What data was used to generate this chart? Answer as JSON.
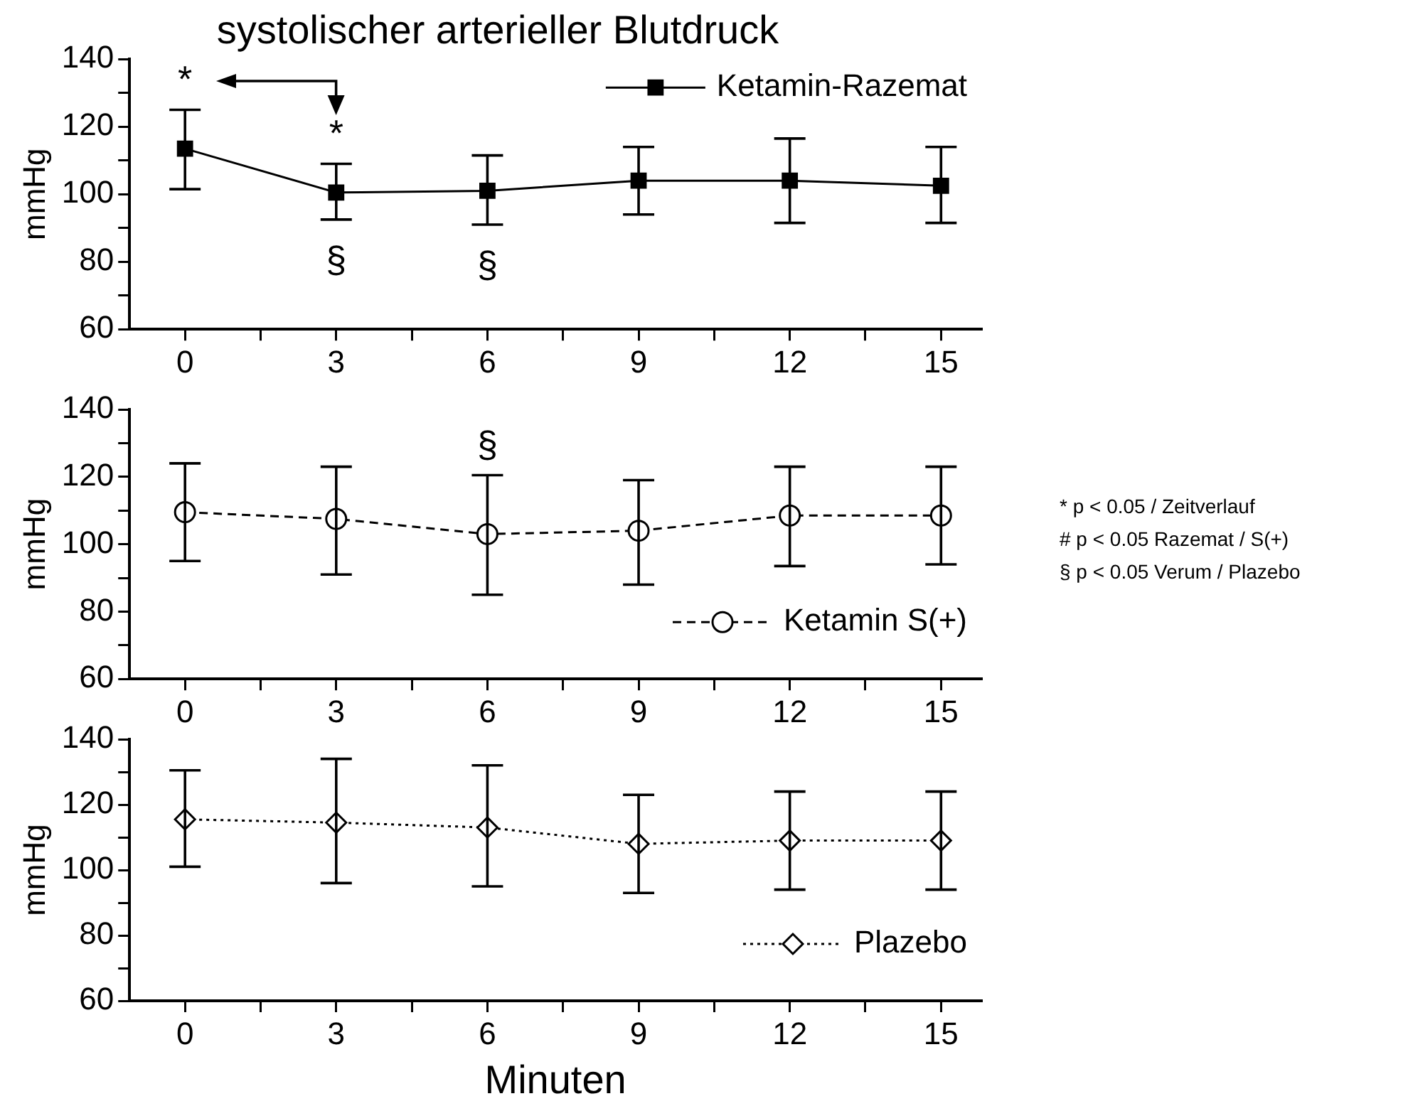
{
  "chart_data": [
    {
      "type": "line",
      "title": "systolischer arterieller Blutdruck",
      "ylabel": "mmHg",
      "x": [
        0,
        3,
        6,
        9,
        12,
        15
      ],
      "xlim": [
        -1.1,
        15.8
      ],
      "ylim": [
        60,
        140
      ],
      "xticks": [
        0,
        {
          "value": 1.5,
          "label": null
        },
        3,
        {
          "value": 4.5,
          "label": null
        },
        6,
        {
          "value": 7.5,
          "label": null
        },
        9,
        {
          "value": 10.5,
          "label": null
        },
        12,
        {
          "value": 13.5,
          "label": null
        },
        15
      ],
      "yticks": [
        60,
        {
          "value": 70,
          "label": null
        },
        80,
        {
          "value": 90,
          "label": null
        },
        100,
        {
          "value": 110,
          "label": null
        },
        120,
        {
          "value": 130,
          "label": null
        },
        140
      ],
      "marker": "square",
      "line_style": "solid",
      "legend": "top right",
      "grid": false,
      "series": [
        {
          "name": "Ketamin-Razemat",
          "color": "#000000",
          "values": [
            113.5,
            100.5,
            101,
            104,
            104,
            102.5
          ],
          "errors": [
            [
              101.5,
              125
            ],
            [
              92.5,
              109
            ],
            [
              91,
              111.5
            ],
            [
              94,
              114
            ],
            [
              91.5,
              116.5
            ],
            [
              91.5,
              114
            ]
          ]
        }
      ],
      "annotations": [
        {
          "text": "*",
          "x": 0,
          "y": 125
        },
        {
          "text": "*",
          "x": 3,
          "y": 109
        },
        {
          "text": "§",
          "x": 3,
          "y": 92.5
        },
        {
          "text": "§",
          "x": 6,
          "y": 91
        }
      ]
    },
    {
      "type": "line",
      "ylabel": "mmHg",
      "x": [
        0,
        3,
        6,
        9,
        12,
        15
      ],
      "xlim": [
        -1.1,
        15.8
      ],
      "ylim": [
        60,
        140
      ],
      "xticks": [
        0,
        {
          "value": 1.5,
          "label": null
        },
        3,
        {
          "value": 4.5,
          "label": null
        },
        6,
        {
          "value": 7.5,
          "label": null
        },
        9,
        {
          "value": 10.5,
          "label": null
        },
        12,
        {
          "value": 13.5,
          "label": null
        },
        15
      ],
      "yticks": [
        60,
        {
          "value": 70,
          "label": null
        },
        80,
        {
          "value": 90,
          "label": null
        },
        100,
        {
          "value": 110,
          "label": null
        },
        120,
        {
          "value": 130,
          "label": null
        },
        140
      ],
      "marker": "circle",
      "line_style": "dashed",
      "legend": "bottom right",
      "grid": false,
      "series": [
        {
          "name": "Ketamin S(+)",
          "color": "#000000",
          "values": [
            109.5,
            107.5,
            103,
            104,
            108.5,
            108.5
          ],
          "errors": [
            [
              95,
              124
            ],
            [
              91,
              123
            ],
            [
              85,
              120.5
            ],
            [
              88,
              119
            ],
            [
              93.5,
              123
            ],
            [
              94,
              123
            ]
          ]
        }
      ],
      "annotations": [
        {
          "text": "§",
          "x": 6,
          "y": 120.5
        },
        "* p < 0.05 / Zeitverlauf",
        "# p < 0.05 Razemat / S(+)",
        "§ p < 0.05 Verum / Plazebo"
      ]
    },
    {
      "type": "line",
      "ylabel": "mmHg",
      "xlabel": "Minuten",
      "x": [
        0,
        3,
        6,
        9,
        12,
        15
      ],
      "xlim": [
        -1.1,
        15.8
      ],
      "ylim": [
        60,
        140
      ],
      "xticks": [
        0,
        {
          "value": 1.5,
          "label": null
        },
        3,
        {
          "value": 4.5,
          "label": null
        },
        6,
        {
          "value": 7.5,
          "label": null
        },
        9,
        {
          "value": 10.5,
          "label": null
        },
        12,
        {
          "value": 13.5,
          "label": null
        },
        15
      ],
      "yticks": [
        60,
        {
          "value": 70,
          "label": null
        },
        80,
        {
          "value": 90,
          "label": null
        },
        100,
        {
          "value": 110,
          "label": null
        },
        120,
        {
          "value": 130,
          "label": null
        },
        140
      ],
      "marker": "diamond",
      "line_style": "dotted",
      "legend": "bottom right",
      "grid": false,
      "series": [
        {
          "name": "Plazebo",
          "color": "#000000",
          "values": [
            115.5,
            114.5,
            113,
            108,
            109,
            109
          ],
          "errors": [
            [
              101,
              130.5
            ],
            [
              96,
              134
            ],
            [
              95,
              132
            ],
            [
              93,
              123
            ],
            [
              94,
              124
            ],
            [
              94,
              124
            ]
          ]
        }
      ]
    }
  ]
}
